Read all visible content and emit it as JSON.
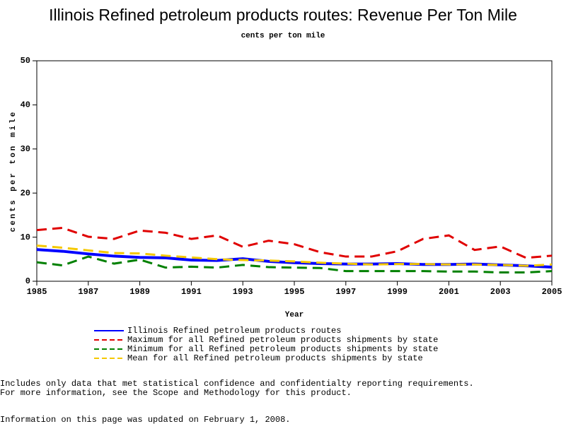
{
  "chart_data": {
    "type": "line",
    "title": "Illinois Refined petroleum products routes: Revenue Per Ton Mile",
    "subtitle": "cents per ton mile",
    "y_label": "cents per ton mile",
    "x_label": "Year",
    "x": [
      1985,
      1986,
      1987,
      1988,
      1989,
      1990,
      1991,
      1992,
      1993,
      1994,
      1995,
      1996,
      1997,
      1998,
      1999,
      2000,
      2001,
      2002,
      2003,
      2004,
      2005
    ],
    "series": [
      {
        "name": "Illinois Refined petroleum products routes",
        "color": "#0000ff",
        "dashed": false,
        "values": [
          7.2,
          6.8,
          6.2,
          5.7,
          5.4,
          5.3,
          4.8,
          4.7,
          5.1,
          4.5,
          4.2,
          4.0,
          3.9,
          3.9,
          4.0,
          3.8,
          3.8,
          3.9,
          3.7,
          3.5,
          3.2
        ]
      },
      {
        "name": "Maximum for all Refined petroleum products shipments by state",
        "color": "#e00000",
        "dashed": true,
        "values": [
          11.6,
          12.1,
          10.1,
          9.6,
          11.5,
          11.0,
          9.6,
          10.4,
          7.8,
          9.2,
          8.4,
          6.6,
          5.6,
          5.6,
          6.8,
          9.6,
          10.4,
          7.1,
          7.9,
          5.3,
          5.8
        ]
      },
      {
        "name": "Minimum for all Refined petroleum products shipments by state",
        "color": "#008000",
        "dashed": true,
        "values": [
          4.3,
          3.6,
          5.6,
          4.0,
          4.9,
          3.1,
          3.3,
          3.1,
          3.7,
          3.2,
          3.1,
          3.0,
          2.3,
          2.3,
          2.3,
          2.3,
          2.2,
          2.2,
          2.0,
          2.0,
          2.3
        ]
      },
      {
        "name": "Mean for all Refined petroleum products shipments by state",
        "color": "#f5c800",
        "dashed": true,
        "values": [
          8.1,
          7.6,
          7.0,
          6.4,
          6.3,
          5.8,
          5.4,
          5.0,
          4.8,
          4.7,
          4.5,
          4.2,
          4.0,
          3.8,
          3.9,
          3.9,
          3.8,
          3.8,
          3.7,
          3.5,
          3.8
        ]
      }
    ],
    "xlim": [
      1985,
      2005
    ],
    "xticks": [
      1985,
      1987,
      1989,
      1991,
      1993,
      1995,
      1997,
      1999,
      2001,
      2003,
      2005
    ],
    "ylim": [
      0,
      50
    ],
    "yticks": [
      0,
      10,
      20,
      30,
      40,
      50
    ],
    "grid": false,
    "footnotes": [
      "Includes only data that met statistical confidence and confidentialty reporting requirements.",
      "For more information, see the Scope and Methodology for this product."
    ],
    "updated": "Information on this page was updated on February 1, 2008."
  }
}
